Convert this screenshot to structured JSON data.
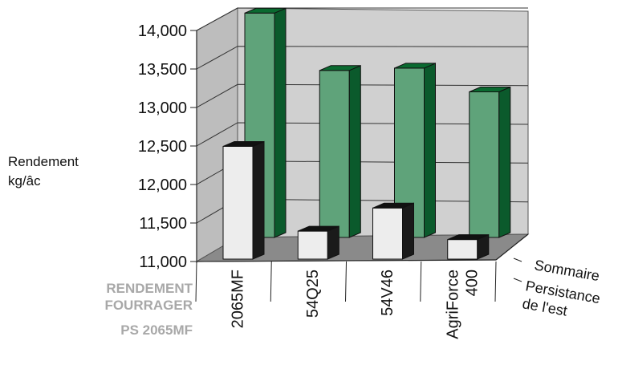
{
  "chart_data": {
    "type": "bar",
    "title": "",
    "xlabel": "",
    "ylabel": "Rendement kg/âc",
    "ylabel_lines": [
      "Rendement",
      "kg/âc"
    ],
    "categories": [
      "2065MF",
      "54Q25",
      "54V46",
      "AgriForce 400"
    ],
    "category_label_lines": [
      [
        "2065MF"
      ],
      [
        "54Q25"
      ],
      [
        "54V46"
      ],
      [
        "AgriForce",
        "400"
      ]
    ],
    "series": [
      {
        "name": "Sommaire",
        "values": [
          12620,
          11520,
          11820,
          11410
        ],
        "color": "#ededed",
        "side_color": "#1a1a1a",
        "top_color": "#111111"
      },
      {
        "name": "Persistance de l'est",
        "values": [
          14060,
          13310,
          13340,
          13030
        ],
        "color": "#5fa37a",
        "side_color": "#0b5a2c",
        "top_color": "#0a6a30"
      }
    ],
    "series_axis_labels": [
      [
        "Sommaire"
      ],
      [
        "Persistance",
        "de l'est"
      ]
    ],
    "ylim": [
      11000,
      14000
    ],
    "yticks": [
      "11,000",
      "11,500",
      "12,000",
      "12,500",
      "13,000",
      "13,500",
      "14,000"
    ],
    "ytick_values": [
      11000,
      11500,
      12000,
      12500,
      13000,
      13500,
      14000
    ],
    "grid": true,
    "legend": "none",
    "style": "3d-clustered-depth"
  },
  "side_caption": {
    "line1": "RENDEMENT",
    "line2": "FOURRAGER",
    "line3": "PS 2065MF"
  }
}
